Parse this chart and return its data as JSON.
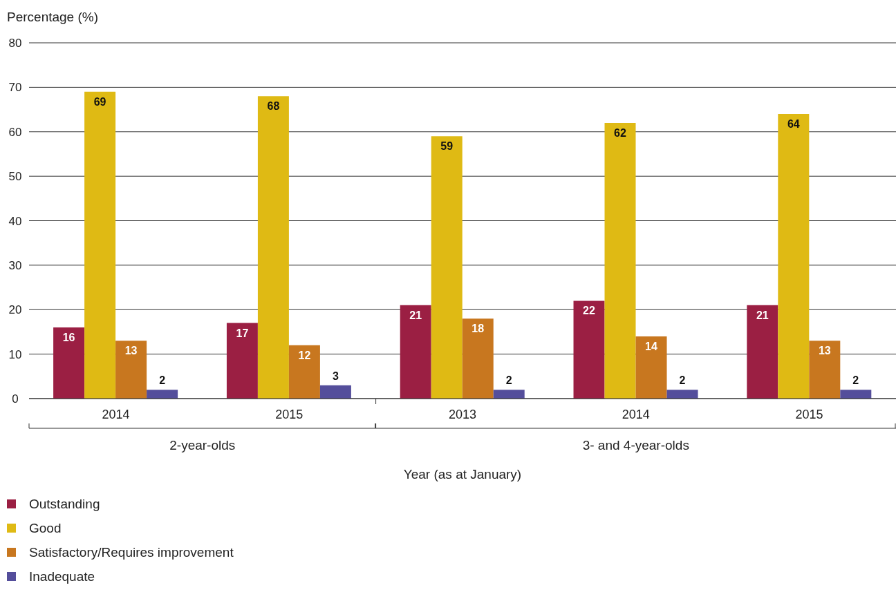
{
  "chart_data": {
    "type": "bar",
    "ylabel": "Percentage (%)",
    "xlabel": "Year (as at January)",
    "categories": [
      "2014",
      "2015",
      "2013",
      "2014",
      "2015"
    ],
    "annotations": [
      "2-year-olds",
      "3- and 4-year-olds"
    ],
    "series": [
      {
        "name": "Outstanding",
        "color": "#9b1f43",
        "values": [
          16,
          17,
          21,
          22,
          21
        ]
      },
      {
        "name": "Good",
        "color": "#dfba14",
        "values": [
          69,
          68,
          59,
          62,
          64
        ]
      },
      {
        "name": "Satisfactory/Requires improvement",
        "color": "#c8771f",
        "values": [
          13,
          12,
          18,
          14,
          13
        ]
      },
      {
        "name": "Inadequate",
        "color": "#544e9b",
        "values": [
          2,
          3,
          2,
          2,
          2
        ]
      }
    ],
    "ylim": [
      0,
      80
    ],
    "yticks": [
      0,
      10,
      20,
      30,
      40,
      50,
      60,
      70,
      80
    ],
    "grid": "y",
    "legend": "bottom left",
    "data_labels": true
  }
}
